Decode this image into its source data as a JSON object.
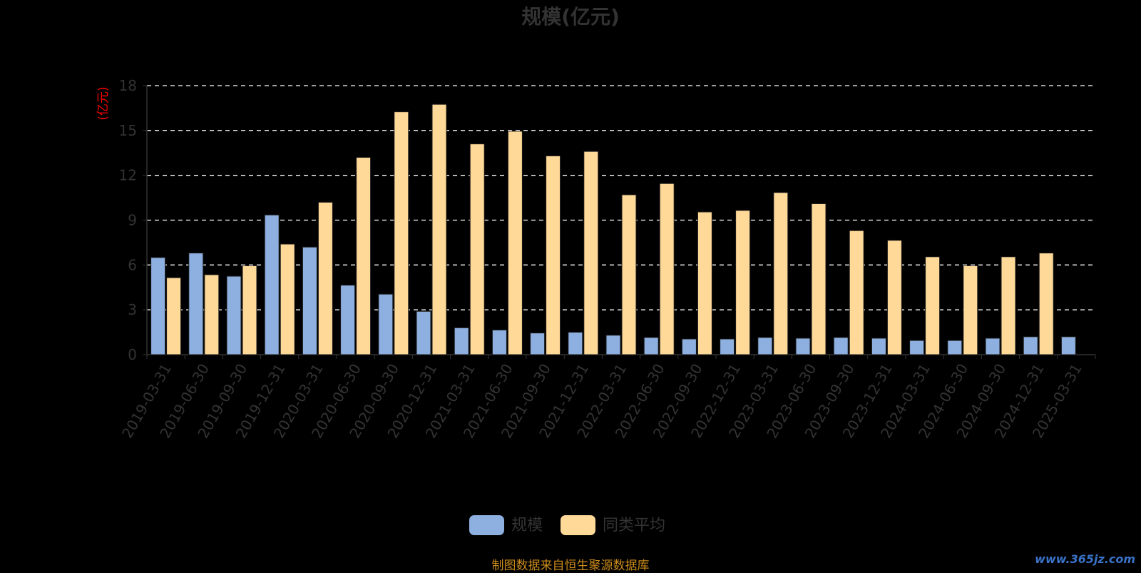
{
  "chart_data": {
    "type": "bar",
    "title": "规模(亿元)",
    "ylabel": "(亿元)",
    "ylim": [
      0,
      18
    ],
    "yticks": [
      0,
      3,
      6,
      9,
      12,
      15,
      18
    ],
    "grid": true,
    "legend_position": "bottom",
    "categories": [
      "2019-03-31",
      "2019-06-30",
      "2019-09-30",
      "2019-12-31",
      "2020-03-31",
      "2020-06-30",
      "2020-09-30",
      "2020-12-31",
      "2021-03-31",
      "2021-06-30",
      "2021-09-30",
      "2021-12-31",
      "2022-03-31",
      "2022-06-30",
      "2022-09-30",
      "2022-12-31",
      "2023-03-31",
      "2023-06-30",
      "2023-09-30",
      "2023-12-31",
      "2024-03-31",
      "2024-06-30",
      "2024-09-30",
      "2024-12-31",
      "2025-03-31"
    ],
    "series": [
      {
        "name": "规模",
        "color": "#8eb0e0",
        "values": [
          6.5,
          6.8,
          5.25,
          9.35,
          7.2,
          4.65,
          4.05,
          2.9,
          1.8,
          1.65,
          1.45,
          1.5,
          1.3,
          1.15,
          1.05,
          1.05,
          1.15,
          1.1,
          1.15,
          1.1,
          0.95,
          0.95,
          1.1,
          1.2,
          1.2
        ]
      },
      {
        "name": "同类平均",
        "color": "#ffd998",
        "values": [
          5.15,
          5.35,
          5.95,
          7.4,
          10.2,
          13.2,
          16.25,
          16.75,
          14.1,
          14.95,
          13.3,
          13.6,
          10.7,
          11.45,
          9.55,
          9.65,
          10.85,
          10.1,
          8.3,
          7.65,
          6.55,
          5.95,
          6.55,
          6.8,
          null
        ]
      }
    ]
  },
  "footer": "制图数据来自恒生聚源数据库",
  "watermark": "www.365jz.com",
  "colors": {
    "background": "#000000",
    "grid": "#ffffff",
    "axis_text": "#333333",
    "ylabel": "#ff0000"
  }
}
